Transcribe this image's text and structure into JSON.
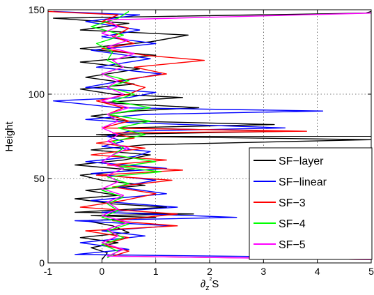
{
  "chart_data": {
    "type": "line",
    "title": "",
    "xlabel": "∂z²S",
    "ylabel": "Height",
    "xlim": [
      -1,
      5
    ],
    "ylim": [
      0,
      150
    ],
    "xticks": [
      -1,
      0,
      1,
      2,
      3,
      4,
      5
    ],
    "yticks": [
      0,
      50,
      100,
      150
    ],
    "grid": true,
    "legend_position": "bottom-right",
    "reference_line_y": 75,
    "series": [
      {
        "name": "SF−layer",
        "color": "#000000",
        "points": [
          [
            0.0,
            2
          ],
          [
            0.1,
            6
          ],
          [
            -0.2,
            9
          ],
          [
            0.3,
            12
          ],
          [
            -0.4,
            15
          ],
          [
            0.5,
            18
          ],
          [
            0.2,
            22
          ],
          [
            -0.3,
            25
          ],
          [
            1.0,
            27
          ],
          [
            -0.2,
            28
          ],
          [
            1.7,
            29
          ],
          [
            -0.5,
            30
          ],
          [
            1.2,
            33
          ],
          [
            0.2,
            35
          ],
          [
            -0.5,
            38
          ],
          [
            0.3,
            40
          ],
          [
            -0.3,
            43
          ],
          [
            0.8,
            46
          ],
          [
            0.0,
            49
          ],
          [
            -0.4,
            52
          ],
          [
            0.6,
            55
          ],
          [
            -0.5,
            58
          ],
          [
            0.4,
            61
          ],
          [
            0.9,
            64
          ],
          [
            -0.2,
            67
          ],
          [
            0.8,
            70
          ],
          [
            5.0,
            73
          ],
          [
            0.5,
            75
          ],
          [
            -0.1,
            76
          ],
          [
            3.5,
            78
          ],
          [
            0.3,
            80
          ],
          [
            3.2,
            82
          ],
          [
            0.5,
            84
          ],
          [
            -0.2,
            87
          ],
          [
            0.6,
            90
          ],
          [
            1.8,
            92
          ],
          [
            0.0,
            95
          ],
          [
            1.5,
            98
          ],
          [
            0.2,
            100
          ],
          [
            -0.4,
            103
          ],
          [
            0.6,
            106
          ],
          [
            -0.3,
            110
          ],
          [
            0.7,
            115
          ],
          [
            -0.4,
            119
          ],
          [
            1.0,
            123
          ],
          [
            -0.4,
            127
          ],
          [
            0.9,
            131
          ],
          [
            1.6,
            135
          ],
          [
            -0.4,
            138
          ],
          [
            0.5,
            142
          ],
          [
            -0.9,
            145
          ],
          [
            4.9,
            148
          ],
          [
            5.0,
            149
          ]
        ]
      },
      {
        "name": "SF−linear",
        "color": "#0000ff",
        "points": [
          [
            5.0,
            3
          ],
          [
            -0.5,
            5
          ],
          [
            0.5,
            8
          ],
          [
            -0.4,
            12
          ],
          [
            0.8,
            16
          ],
          [
            0.0,
            19
          ],
          [
            1.3,
            22
          ],
          [
            -0.5,
            25
          ],
          [
            2.5,
            27
          ],
          [
            0.0,
            30
          ],
          [
            1.4,
            33
          ],
          [
            -0.2,
            37
          ],
          [
            1.2,
            41
          ],
          [
            0.3,
            45
          ],
          [
            1.0,
            49
          ],
          [
            -0.2,
            53
          ],
          [
            1.2,
            56
          ],
          [
            -0.3,
            60
          ],
          [
            0.6,
            63
          ],
          [
            0.9,
            66
          ],
          [
            0.0,
            69
          ],
          [
            0.4,
            72
          ],
          [
            0.1,
            75
          ],
          [
            0.5,
            78
          ],
          [
            3.4,
            80
          ],
          [
            0.6,
            83
          ],
          [
            -0.3,
            85
          ],
          [
            0.8,
            88
          ],
          [
            4.1,
            90
          ],
          [
            0.3,
            92
          ],
          [
            -0.9,
            96
          ],
          [
            0.5,
            98
          ],
          [
            1.0,
            101
          ],
          [
            -0.3,
            104
          ],
          [
            0.4,
            108
          ],
          [
            1.1,
            112
          ],
          [
            -0.1,
            116
          ],
          [
            0.9,
            121
          ],
          [
            -0.2,
            126
          ],
          [
            1.0,
            130
          ],
          [
            0.0,
            134
          ],
          [
            0.7,
            138
          ],
          [
            -0.3,
            143
          ],
          [
            0.7,
            147
          ],
          [
            -0.9,
            149
          ]
        ]
      },
      {
        "name": "SF−3",
        "color": "#ff0000",
        "points": [
          [
            5.0,
            2
          ],
          [
            0.2,
            4
          ],
          [
            0.5,
            7
          ],
          [
            0.0,
            11
          ],
          [
            0.5,
            15
          ],
          [
            -0.3,
            19
          ],
          [
            1.4,
            22
          ],
          [
            0.2,
            25
          ],
          [
            1.4,
            29
          ],
          [
            -0.4,
            33
          ],
          [
            0.4,
            37
          ],
          [
            1.0,
            41
          ],
          [
            0.2,
            45
          ],
          [
            1.3,
            49
          ],
          [
            -0.1,
            52
          ],
          [
            1.5,
            55
          ],
          [
            0.1,
            58
          ],
          [
            1.2,
            61
          ],
          [
            -0.2,
            64
          ],
          [
            0.8,
            68
          ],
          [
            -0.1,
            71
          ],
          [
            0.6,
            74
          ],
          [
            0.2,
            77
          ],
          [
            3.8,
            78
          ],
          [
            0.0,
            80
          ],
          [
            0.5,
            84
          ],
          [
            0.1,
            88
          ],
          [
            0.4,
            92
          ],
          [
            -0.1,
            96
          ],
          [
            0.5,
            100
          ],
          [
            0.8,
            104
          ],
          [
            0.3,
            108
          ],
          [
            1.2,
            112
          ],
          [
            0.6,
            116
          ],
          [
            1.9,
            120
          ],
          [
            0.8,
            123
          ],
          [
            0.0,
            127
          ],
          [
            0.6,
            130
          ],
          [
            0.2,
            134
          ],
          [
            0.5,
            139
          ],
          [
            0.0,
            143
          ],
          [
            0.3,
            147
          ],
          [
            -1.0,
            149
          ]
        ]
      },
      {
        "name": "SF−4",
        "color": "#00ff00",
        "points": [
          [
            0.1,
            3
          ],
          [
            0.3,
            7
          ],
          [
            0.0,
            11
          ],
          [
            0.4,
            15
          ],
          [
            0.1,
            19
          ],
          [
            0.5,
            23
          ],
          [
            0.0,
            27
          ],
          [
            0.3,
            31
          ],
          [
            0.1,
            35
          ],
          [
            0.4,
            39
          ],
          [
            0.0,
            43
          ],
          [
            0.5,
            47
          ],
          [
            0.1,
            51
          ],
          [
            1.1,
            54
          ],
          [
            0.3,
            57
          ],
          [
            1.0,
            60
          ],
          [
            0.2,
            64
          ],
          [
            0.4,
            68
          ],
          [
            0.2,
            72
          ],
          [
            0.8,
            76
          ],
          [
            0.3,
            80
          ],
          [
            0.9,
            84
          ],
          [
            0.1,
            88
          ],
          [
            0.9,
            92
          ],
          [
            0.2,
            96
          ],
          [
            0.6,
            100
          ],
          [
            0.1,
            104
          ],
          [
            0.5,
            108
          ],
          [
            0.0,
            112
          ],
          [
            0.4,
            116
          ],
          [
            0.1,
            120
          ],
          [
            0.2,
            125
          ],
          [
            -0.1,
            130
          ],
          [
            0.4,
            135
          ],
          [
            -0.2,
            140
          ],
          [
            0.3,
            145
          ],
          [
            0.5,
            149
          ]
        ]
      },
      {
        "name": "SF−5",
        "color": "#ff00ff",
        "points": [
          [
            5.0,
            2
          ],
          [
            0.1,
            4
          ],
          [
            0.4,
            8
          ],
          [
            0.0,
            12
          ],
          [
            0.3,
            16
          ],
          [
            0.1,
            20
          ],
          [
            0.5,
            24
          ],
          [
            0.0,
            28
          ],
          [
            0.3,
            32
          ],
          [
            0.1,
            36
          ],
          [
            0.4,
            40
          ],
          [
            0.0,
            44
          ],
          [
            0.3,
            48
          ],
          [
            0.1,
            52
          ],
          [
            0.4,
            56
          ],
          [
            0.0,
            60
          ],
          [
            0.2,
            64
          ],
          [
            0.5,
            68
          ],
          [
            0.1,
            72
          ],
          [
            0.3,
            76
          ],
          [
            0.0,
            80
          ],
          [
            0.3,
            84
          ],
          [
            0.1,
            88
          ],
          [
            0.5,
            92
          ],
          [
            0.0,
            96
          ],
          [
            0.4,
            100
          ],
          [
            0.1,
            104
          ],
          [
            0.3,
            108
          ],
          [
            0.0,
            112
          ],
          [
            0.4,
            116
          ],
          [
            0.2,
            120
          ],
          [
            0.6,
            124
          ],
          [
            0.1,
            128
          ],
          [
            0.5,
            132
          ],
          [
            0.0,
            136
          ],
          [
            0.3,
            140
          ],
          [
            0.1,
            144
          ],
          [
            5.0,
            148
          ]
        ]
      }
    ]
  }
}
